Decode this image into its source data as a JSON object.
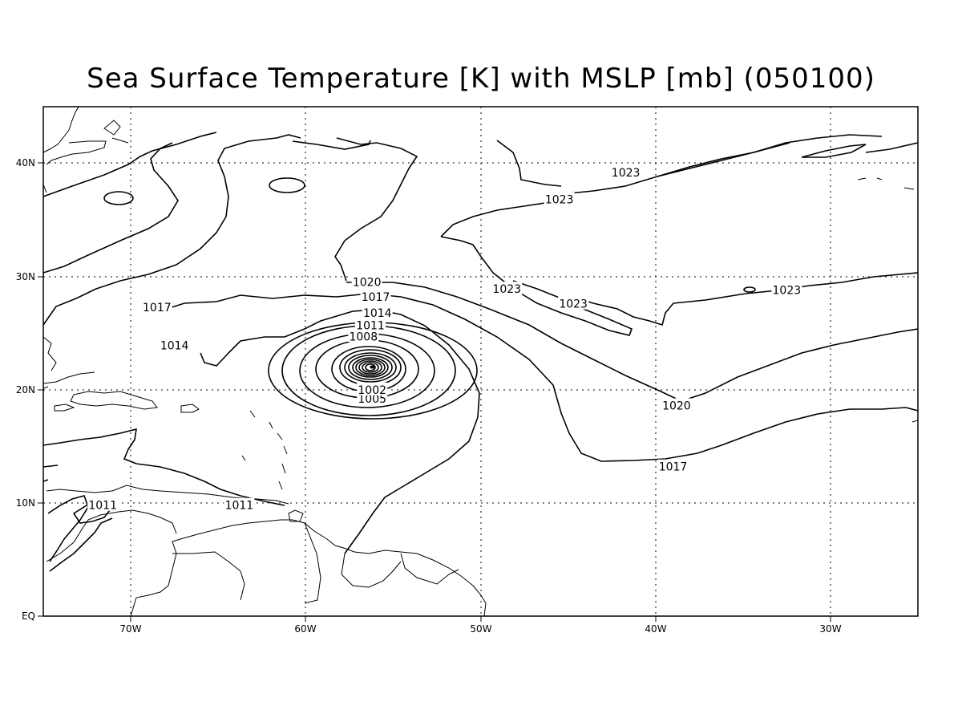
{
  "title": "Sea Surface Temperature [K] with MSLP [mb] (050100)",
  "axes": {
    "lon_ticks": [
      "70W",
      "60W",
      "50W",
      "40W",
      "30W"
    ],
    "lat_ticks": [
      "EQ",
      "10N",
      "20N",
      "30N",
      "40N"
    ]
  },
  "map_extent": {
    "lon": [
      -75,
      -25
    ],
    "lat": [
      0,
      45
    ]
  },
  "grid": "dotted",
  "contour_labels": [
    {
      "text": "1023",
      "lon": -41.7,
      "lat": 39.2
    },
    {
      "text": "1023",
      "lon": -45.5,
      "lat": 36.8
    },
    {
      "text": "1023",
      "lon": -32.5,
      "lat": 28.8
    },
    {
      "text": "1023",
      "lon": -48.5,
      "lat": 28.9
    },
    {
      "text": "1023",
      "lon": -44.7,
      "lat": 27.6
    },
    {
      "text": "1020",
      "lon": -56.5,
      "lat": 29.5
    },
    {
      "text": "1020",
      "lon": -38.8,
      "lat": 18.6
    },
    {
      "text": "1017",
      "lon": -56.0,
      "lat": 28.2
    },
    {
      "text": "1017",
      "lon": -68.5,
      "lat": 27.3
    },
    {
      "text": "1017",
      "lon": -39.0,
      "lat": 13.2
    },
    {
      "text": "1014",
      "lon": -55.9,
      "lat": 26.8
    },
    {
      "text": "1014",
      "lon": -67.5,
      "lat": 23.9
    },
    {
      "text": "1011",
      "lon": -56.3,
      "lat": 25.7
    },
    {
      "text": "1008",
      "lon": -56.7,
      "lat": 24.7
    },
    {
      "text": "1005",
      "lon": -56.2,
      "lat": 19.2
    },
    {
      "text": "1002",
      "lon": -56.2,
      "lat": 20.0
    },
    {
      "text": "1011",
      "lon": -71.6,
      "lat": 9.8
    },
    {
      "text": "1011",
      "lon": -63.8,
      "lat": 9.8
    }
  ],
  "low_center": {
    "lon": -56.2,
    "lat": 22.0
  }
}
